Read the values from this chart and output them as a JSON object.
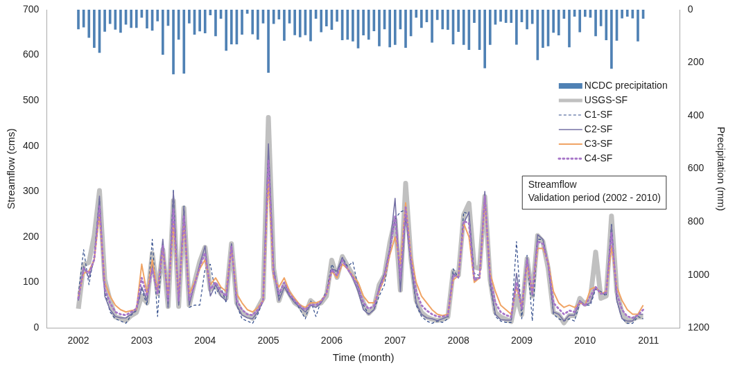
{
  "chart_data": {
    "type": "line",
    "xlabel": "Time (month)",
    "ylabel": "Streamflow (cms)",
    "y2label": "Precipitation (mm)",
    "x": [
      "2002-01",
      "2002-02",
      "2002-03",
      "2002-04",
      "2002-05",
      "2002-06",
      "2002-07",
      "2002-08",
      "2002-09",
      "2002-10",
      "2002-11",
      "2002-12",
      "2003-01",
      "2003-02",
      "2003-03",
      "2003-04",
      "2003-05",
      "2003-06",
      "2003-07",
      "2003-08",
      "2003-09",
      "2003-10",
      "2003-11",
      "2003-12",
      "2004-01",
      "2004-02",
      "2004-03",
      "2004-04",
      "2004-05",
      "2004-06",
      "2004-07",
      "2004-08",
      "2004-09",
      "2004-10",
      "2004-11",
      "2004-12",
      "2005-01",
      "2005-02",
      "2005-03",
      "2005-04",
      "2005-05",
      "2005-06",
      "2005-07",
      "2005-08",
      "2005-09",
      "2005-10",
      "2005-11",
      "2005-12",
      "2006-01",
      "2006-02",
      "2006-03",
      "2006-04",
      "2006-05",
      "2006-06",
      "2006-07",
      "2006-08",
      "2006-09",
      "2006-10",
      "2006-11",
      "2006-12",
      "2007-01",
      "2007-02",
      "2007-03",
      "2007-04",
      "2007-05",
      "2007-06",
      "2007-07",
      "2007-08",
      "2007-09",
      "2007-10",
      "2007-11",
      "2007-12",
      "2008-01",
      "2008-02",
      "2008-03",
      "2008-04",
      "2008-05",
      "2008-06",
      "2008-07",
      "2008-08",
      "2008-09",
      "2008-10",
      "2008-11",
      "2008-12",
      "2009-01",
      "2009-02",
      "2009-03",
      "2009-04",
      "2009-05",
      "2009-06",
      "2009-07",
      "2009-08",
      "2009-09",
      "2009-10",
      "2009-11",
      "2009-12",
      "2010-01",
      "2010-02",
      "2010-03",
      "2010-04",
      "2010-05",
      "2010-06",
      "2010-07",
      "2010-08",
      "2010-09",
      "2010-10",
      "2010-11",
      "2010-12"
    ],
    "xlim": [
      "2002",
      "2011"
    ],
    "xticks": [
      {
        "value": "2002",
        "label": "2002"
      },
      {
        "value": "2003",
        "label": "2003"
      },
      {
        "value": "2004",
        "label": "2004"
      },
      {
        "value": "2005",
        "label": "2005"
      },
      {
        "value": "2006",
        "label": "2006"
      },
      {
        "value": "2007",
        "label": "2007"
      },
      {
        "value": "2008",
        "label": "2008"
      },
      {
        "value": "2009",
        "label": "2009"
      },
      {
        "value": "2010",
        "label": "2010"
      },
      {
        "value": "2011",
        "label": "2011"
      }
    ],
    "ylim": [
      0,
      700
    ],
    "yticks": [
      0,
      100,
      200,
      300,
      400,
      500,
      600,
      700
    ],
    "y2lim": [
      1200,
      0
    ],
    "y2ticks": [
      0,
      200,
      400,
      600,
      800,
      1000,
      1200
    ],
    "grid": false,
    "legend": "top right",
    "marker": "none",
    "annotations": [
      "Streamflow\nValidation period (2002 - 2010)"
    ],
    "series": [
      {
        "name": "NCDC precipitation",
        "type": "bar",
        "axis": "y2",
        "color": "#4f81b4",
        "values": [
          73,
          66,
          105,
          143,
          162,
          82,
          53,
          74,
          86,
          55,
          68,
          68,
          29,
          70,
          78,
          43,
          169,
          60,
          243,
          112,
          240,
          51,
          93,
          81,
          88,
          20,
          99,
          33,
          154,
          130,
          130,
          93,
          14,
          92,
          112,
          51,
          237,
          53,
          36,
          116,
          51,
          95,
          103,
          95,
          118,
          33,
          84,
          62,
          75,
          44,
          114,
          112,
          119,
          145,
          96,
          112,
          80,
          137,
          73,
          141,
          132,
          73,
          143,
          99,
          29,
          68,
          46,
          123,
          38,
          73,
          75,
          130,
          83,
          132,
          151,
          49,
          151,
          220,
          132,
          55,
          44,
          49,
          49,
          131,
          46,
          73,
          53,
          189,
          143,
          137,
          86,
          96,
          33,
          141,
          25,
          84,
          26,
          29,
          99,
          61,
          114,
          222,
          116,
          32,
          25,
          32,
          119,
          33
        ]
      },
      {
        "name": "USGS-SF",
        "line_style": "solid",
        "color": "#c0c0c0",
        "values": [
          42,
          139,
          144,
          203,
          302,
          106,
          60,
          24,
          21,
          16,
          27,
          34,
          70,
          55,
          164,
          75,
          172,
          47,
          280,
          47,
          264,
          50,
          100,
          146,
          177,
          85,
          95,
          75,
          65,
          185,
          55,
          34,
          27,
          21,
          44,
          65,
          463,
          130,
          60,
          95,
          75,
          55,
          47,
          29,
          60,
          50,
          55,
          70,
          149,
          111,
          157,
          136,
          116,
          90,
          55,
          32,
          44,
          95,
          116,
          187,
          238,
          83,
          318,
          152,
          60,
          34,
          24,
          19,
          16,
          19,
          24,
          124,
          116,
          249,
          274,
          134,
          131,
          289,
          106,
          34,
          24,
          19,
          14,
          70,
          29,
          152,
          70,
          203,
          190,
          131,
          34,
          29,
          11,
          27,
          27,
          65,
          52,
          65,
          167,
          65,
          70,
          246,
          80,
          32,
          14,
          19,
          24,
          24
        ]
      },
      {
        "name": "C1-SF",
        "line_style": "dashed",
        "color": "#2f4a8a",
        "values": [
          75,
          172,
          95,
          160,
          285,
          80,
          35,
          20,
          15,
          10,
          28,
          38,
          85,
          50,
          195,
          25,
          190,
          45,
          305,
          50,
          268,
          45,
          50,
          50,
          130,
          140,
          75,
          90,
          55,
          185,
          50,
          20,
          15,
          10,
          30,
          60,
          390,
          130,
          70,
          100,
          70,
          60,
          40,
          20,
          60,
          25,
          60,
          80,
          140,
          120,
          155,
          135,
          145,
          90,
          50,
          30,
          40,
          70,
          95,
          170,
          240,
          255,
          260,
          140,
          50,
          25,
          15,
          10,
          15,
          12,
          20,
          130,
          110,
          255,
          250,
          120,
          115,
          295,
          95,
          25,
          15,
          12,
          12,
          190,
          20,
          160,
          15,
          195,
          195,
          140,
          30,
          20,
          15,
          20,
          15,
          55,
          50,
          50,
          85,
          80,
          70,
          230,
          60,
          20,
          10,
          10,
          25,
          20
        ]
      },
      {
        "name": "C2-SF",
        "line_style": "solid",
        "color": "#7470a4",
        "values": [
          60,
          135,
          110,
          150,
          290,
          70,
          40,
          25,
          22,
          22,
          30,
          40,
          90,
          60,
          140,
          80,
          195,
          45,
          300,
          50,
          265,
          50,
          95,
          140,
          180,
          70,
          95,
          70,
          60,
          185,
          50,
          28,
          22,
          20,
          35,
          60,
          405,
          130,
          60,
          90,
          70,
          55,
          45,
          35,
          50,
          45,
          55,
          75,
          130,
          125,
          155,
          130,
          110,
          80,
          40,
          30,
          40,
          90,
          120,
          175,
          285,
          80,
          245,
          140,
          55,
          30,
          22,
          20,
          16,
          20,
          25,
          120,
          110,
          230,
          255,
          110,
          110,
          300,
          100,
          30,
          18,
          17,
          17,
          120,
          40,
          155,
          70,
          205,
          195,
          140,
          35,
          30,
          15,
          28,
          28,
          60,
          50,
          55,
          90,
          75,
          75,
          225,
          60,
          20,
          15,
          15,
          30,
          30
        ]
      },
      {
        "name": "C3-SF",
        "line_style": "solid",
        "color": "#f0a465",
        "values": [
          70,
          120,
          125,
          150,
          250,
          100,
          70,
          50,
          40,
          35,
          38,
          40,
          140,
          75,
          150,
          80,
          175,
          70,
          230,
          70,
          230,
          75,
          100,
          130,
          150,
          95,
          110,
          90,
          80,
          175,
          75,
          55,
          40,
          35,
          45,
          60,
          330,
          110,
          90,
          110,
          80,
          65,
          50,
          45,
          55,
          55,
          60,
          75,
          125,
          110,
          140,
          130,
          115,
          100,
          70,
          55,
          55,
          80,
          110,
          160,
          200,
          140,
          275,
          160,
          100,
          70,
          55,
          40,
          30,
          27,
          30,
          105,
          115,
          230,
          200,
          100,
          110,
          280,
          120,
          80,
          50,
          40,
          30,
          90,
          45,
          140,
          80,
          175,
          175,
          145,
          80,
          55,
          45,
          50,
          45,
          55,
          50,
          85,
          90,
          75,
          80,
          180,
          90,
          60,
          40,
          30,
          30,
          50
        ]
      },
      {
        "name": "C4-SF",
        "line_style": "dotted",
        "color": "#a674c8",
        "values": [
          65,
          130,
          120,
          150,
          270,
          85,
          55,
          35,
          30,
          28,
          35,
          42,
          110,
          70,
          130,
          75,
          180,
          60,
          260,
          60,
          245,
          60,
          95,
          135,
          165,
          85,
          100,
          80,
          70,
          180,
          60,
          40,
          30,
          28,
          40,
          60,
          370,
          120,
          75,
          100,
          75,
          60,
          48,
          40,
          52,
          50,
          58,
          75,
          128,
          115,
          148,
          130,
          112,
          90,
          55,
          42,
          48,
          85,
          115,
          170,
          245,
          110,
          265,
          150,
          80,
          50,
          38,
          30,
          25,
          25,
          28,
          115,
          112,
          235,
          230,
          105,
          110,
          290,
          110,
          55,
          35,
          28,
          24,
          100,
          42,
          150,
          75,
          190,
          185,
          140,
          55,
          42,
          30,
          38,
          35,
          58,
          48,
          70,
          90,
          75,
          78,
          210,
          75,
          40,
          25,
          22,
          28,
          40
        ]
      }
    ]
  }
}
